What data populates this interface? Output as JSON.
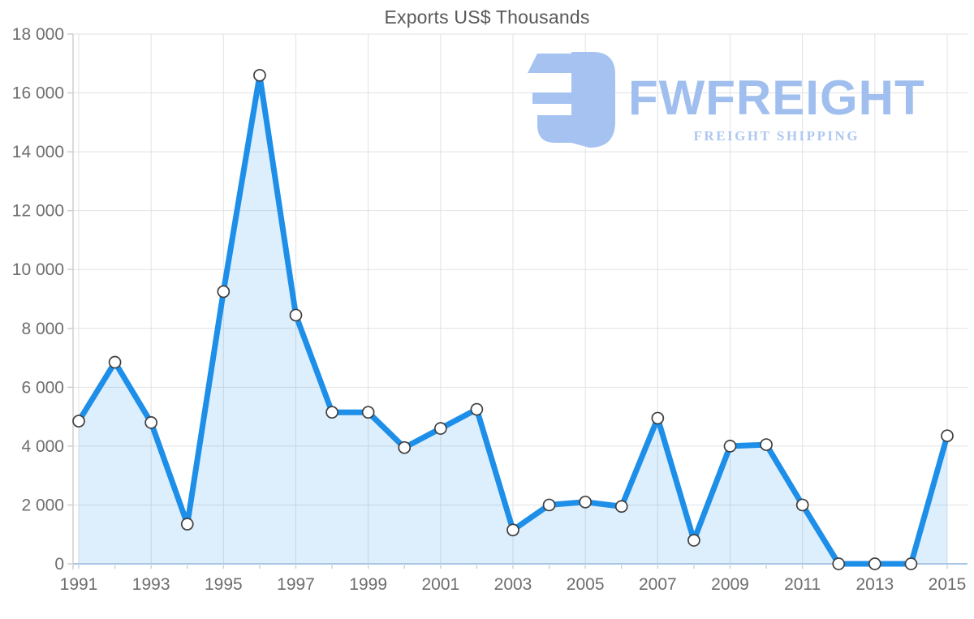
{
  "chart_data": {
    "type": "area",
    "title": "Exports US$ Thousands",
    "xlabel": "",
    "ylabel": "",
    "x": [
      1991,
      1992,
      1993,
      1994,
      1995,
      1996,
      1997,
      1998,
      1999,
      2000,
      2001,
      2002,
      2003,
      2004,
      2005,
      2006,
      2007,
      2008,
      2009,
      2010,
      2011,
      2012,
      2013,
      2014,
      2015
    ],
    "series": [
      {
        "name": "Exports US$ Thousands",
        "values": [
          4850,
          6850,
          4800,
          1350,
          9250,
          16600,
          8450,
          5150,
          5150,
          3950,
          4600,
          5250,
          1150,
          2000,
          2100,
          1950,
          4950,
          800,
          4000,
          4050,
          2000,
          0,
          0,
          0,
          4350
        ]
      }
    ],
    "ylim": [
      0,
      18000
    ],
    "yticks": [
      0,
      2000,
      4000,
      6000,
      8000,
      10000,
      12000,
      14000,
      16000,
      18000
    ],
    "ytick_labels": [
      "0",
      "2 000",
      "4 000",
      "6 000",
      "8 000",
      "10 000",
      "12 000",
      "14 000",
      "16 000",
      "18 000"
    ],
    "xticks": [
      1991,
      1993,
      1995,
      1997,
      1999,
      2001,
      2003,
      2005,
      2007,
      2009,
      2011,
      2013,
      2015
    ],
    "xtick_labels": [
      "1991",
      "1993",
      "1995",
      "1997",
      "1999",
      "2001",
      "2003",
      "2005",
      "2007",
      "2009",
      "2011",
      "2013",
      "2015"
    ],
    "grid": true,
    "legend": "none",
    "marker": "circle"
  },
  "watermark": {
    "brand": "FWFREIGHT",
    "tagline": "FREIGHT SHIPPING",
    "logo_icon": "fwfreight-logo-mark"
  },
  "theme": {
    "line_color": "#1d8fe9",
    "area_fill": "rgba(29,143,233,0.15)",
    "marker_fill": "#ffffff",
    "marker_stroke": "#3f3f3f",
    "grid_color": "#e2e2e2",
    "y_axis_color": "#cfcfcf",
    "x_axis_color": "#a9c7e5",
    "x_tick_color": "#c8d6e6",
    "label_color": "#6e6e6e",
    "title_color": "#595959",
    "watermark_mark_color": "#a6c2f0",
    "watermark_brand_color": "#a0bfee",
    "watermark_tagline_color": "#adc7f1"
  }
}
